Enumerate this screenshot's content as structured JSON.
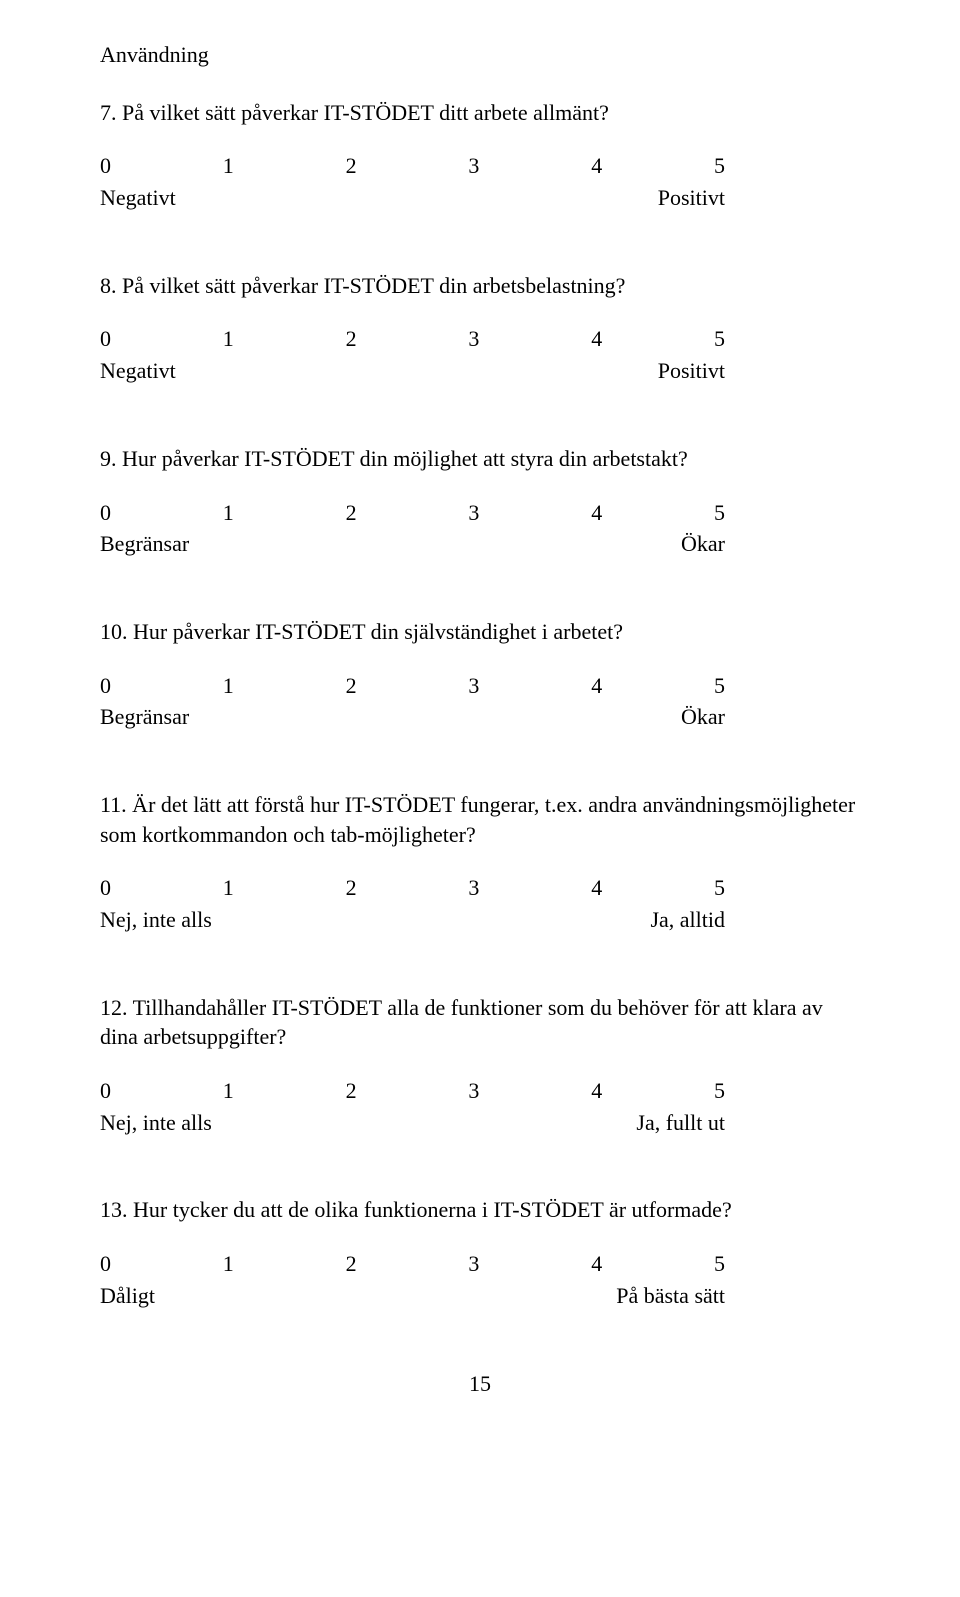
{
  "heading": "Användning",
  "scale_numbers": [
    "0",
    "1",
    "2",
    "3",
    "4",
    "5"
  ],
  "questions": [
    {
      "text": "7. På vilket sätt påverkar IT-STÖDET ditt arbete allmänt?",
      "left": "Negativt",
      "right": "Positivt"
    },
    {
      "text": "8. På vilket sätt påverkar IT-STÖDET din arbetsbelastning?",
      "left": "Negativt",
      "right": "Positivt"
    },
    {
      "text": "9. Hur påverkar IT-STÖDET din möjlighet att styra din arbetstakt?",
      "left": "Begränsar",
      "right": "Ökar"
    },
    {
      "text": "10. Hur påverkar IT-STÖDET din självständighet i arbetet?",
      "left": "Begränsar",
      "right": "Ökar"
    },
    {
      "text": "11. Är det lätt att förstå hur IT-STÖDET fungerar, t.ex. andra användningsmöjligheter som kortkommandon och tab-möjligheter?",
      "left": "Nej, inte alls",
      "right": "Ja, alltid"
    },
    {
      "text": "12. Tillhandahåller IT-STÖDET alla de funktioner som du behöver för att klara av dina arbetsuppgifter?",
      "left": "Nej, inte alls",
      "right": "Ja, fullt ut"
    },
    {
      "text": "13. Hur tycker du att de olika funktionerna i IT-STÖDET är utformade?",
      "left": "Dåligt",
      "right": "På bästa sätt"
    }
  ],
  "page_number": "15"
}
